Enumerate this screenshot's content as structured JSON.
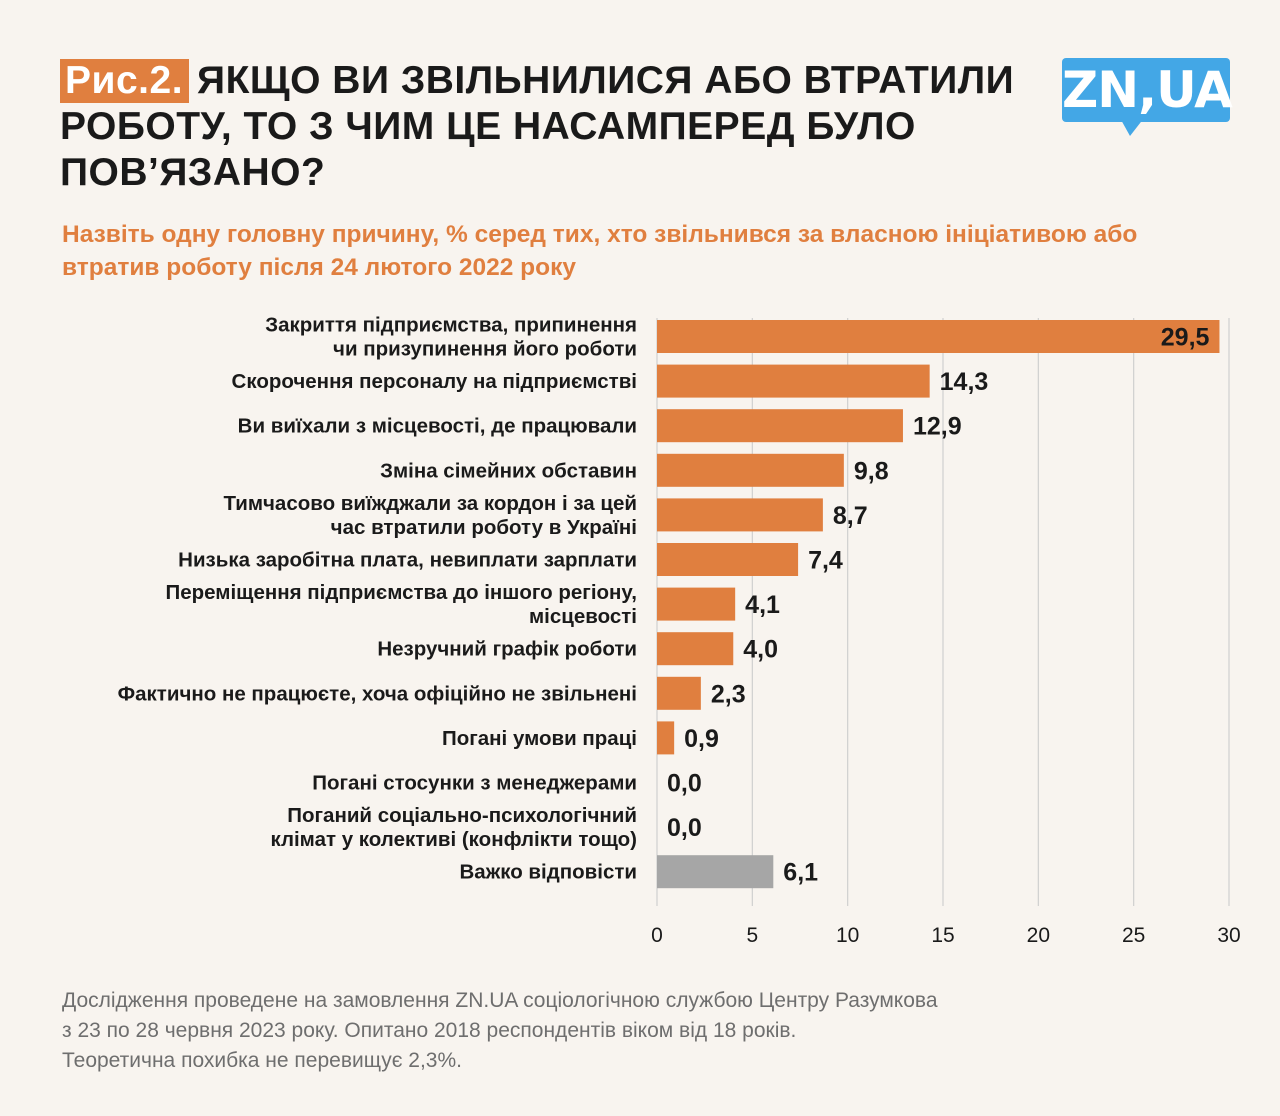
{
  "header": {
    "figure_label": "Рис.2.",
    "title": "ЯКЩО ВИ ЗВІЛЬНИЛИСЯ АБО ВТРАТИЛИ РОБОТУ, ТО З ЧИМ ЦЕ НАСАМПЕРЕД БУЛО ПОВ’ЯЗАНО?",
    "subtitle": "Назвіть одну головну причину, % серед тих, хто звільнився за власною ініціативою або втратив роботу після 24 лютого 2022 року"
  },
  "logo": {
    "text": "ZN,UA"
  },
  "chart_data": {
    "type": "bar",
    "orientation": "horizontal",
    "categories": [
      [
        "Закриття підприємства, припинення",
        "чи призупинення його роботи"
      ],
      [
        "Скорочення персоналу на підприємстві"
      ],
      [
        "Ви виїхали з місцевості, де працювали"
      ],
      [
        "Зміна сімейних обставин"
      ],
      [
        "Тимчасово виїжджали за кордон і за цей",
        "час втратили роботу в Україні"
      ],
      [
        "Низька заробітна плата, невиплати зарплати"
      ],
      [
        "Переміщення підприємства до іншого регіону,",
        "місцевості"
      ],
      [
        "Незручний графік роботи"
      ],
      [
        "Фактично не працюєте, хоча офіційно не звільнені"
      ],
      [
        "Погані умови праці"
      ],
      [
        "Погані стосунки з менеджерами"
      ],
      [
        "Поганий соціально-психологічний",
        "клімат у колективі (конфлікти тощо)"
      ],
      [
        "Важко відповісти"
      ]
    ],
    "values": [
      29.5,
      14.3,
      12.9,
      9.8,
      8.7,
      7.4,
      4.1,
      4.0,
      2.3,
      0.9,
      0.0,
      0.0,
      6.1
    ],
    "value_labels": [
      "29,5",
      "14,3",
      "12,9",
      "9,8",
      "8,7",
      "7,4",
      "4,1",
      "4,0",
      "2,3",
      "0,9",
      "0,0",
      "0,0",
      "6,1"
    ],
    "bar_colors": [
      "#e07f3f",
      "#e07f3f",
      "#e07f3f",
      "#e07f3f",
      "#e07f3f",
      "#e07f3f",
      "#e07f3f",
      "#e07f3f",
      "#e07f3f",
      "#e07f3f",
      "#e07f3f",
      "#e07f3f",
      "#a6a6a6"
    ],
    "xlim": [
      0,
      30
    ],
    "xticks": [
      "0",
      "5",
      "10",
      "15",
      "20",
      "25",
      "30"
    ],
    "grid": true,
    "gridline_color": "#cfcfcf",
    "value_label_position": "outside-end; inside-end for the largest bar"
  },
  "footer": {
    "lines": [
      "Дослідження проведене на замовлення ZN.UA соціологічною службою Центру Разумкова",
      "з 23 по 28 червня 2023 року. Опитано 2018 респондентів віком від 18 років.",
      "Теоретична похибка не перевищує 2,3%."
    ]
  },
  "colors": {
    "accent": "#e07f3f",
    "logo_blue": "#43a7e6",
    "neutral_bar": "#a6a6a6",
    "background": "#f8f4ef"
  }
}
